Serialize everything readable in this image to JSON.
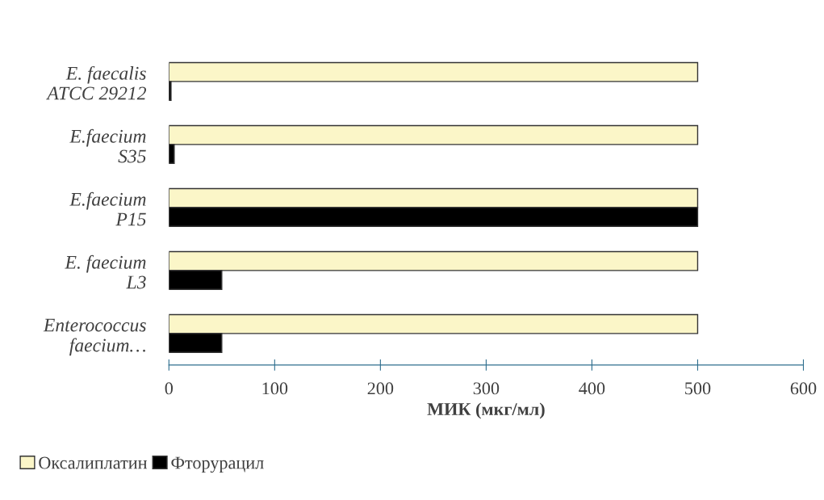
{
  "chart_data": {
    "type": "bar",
    "orientation": "horizontal",
    "xlabel": "МИК (мкг/мл)",
    "categories": [
      "E. faecalis\nATCC 29212",
      "E.faecium\nS35",
      "E.faecium\nP15",
      "E. faecium\nL3",
      "Enterococcus\nfaecium…"
    ],
    "series": [
      {
        "name": "Оксалиплатин",
        "color": "#fbf6c8",
        "values": [
          500,
          500,
          500,
          500,
          500
        ]
      },
      {
        "name": "Фторурацил",
        "color": "#000000",
        "values": [
          2,
          5,
          500,
          50,
          50
        ]
      }
    ],
    "xlim": [
      0,
      600
    ],
    "xticks": [
      0,
      100,
      200,
      300,
      400,
      500,
      600
    ],
    "grid": false,
    "legend": "bottom left"
  }
}
